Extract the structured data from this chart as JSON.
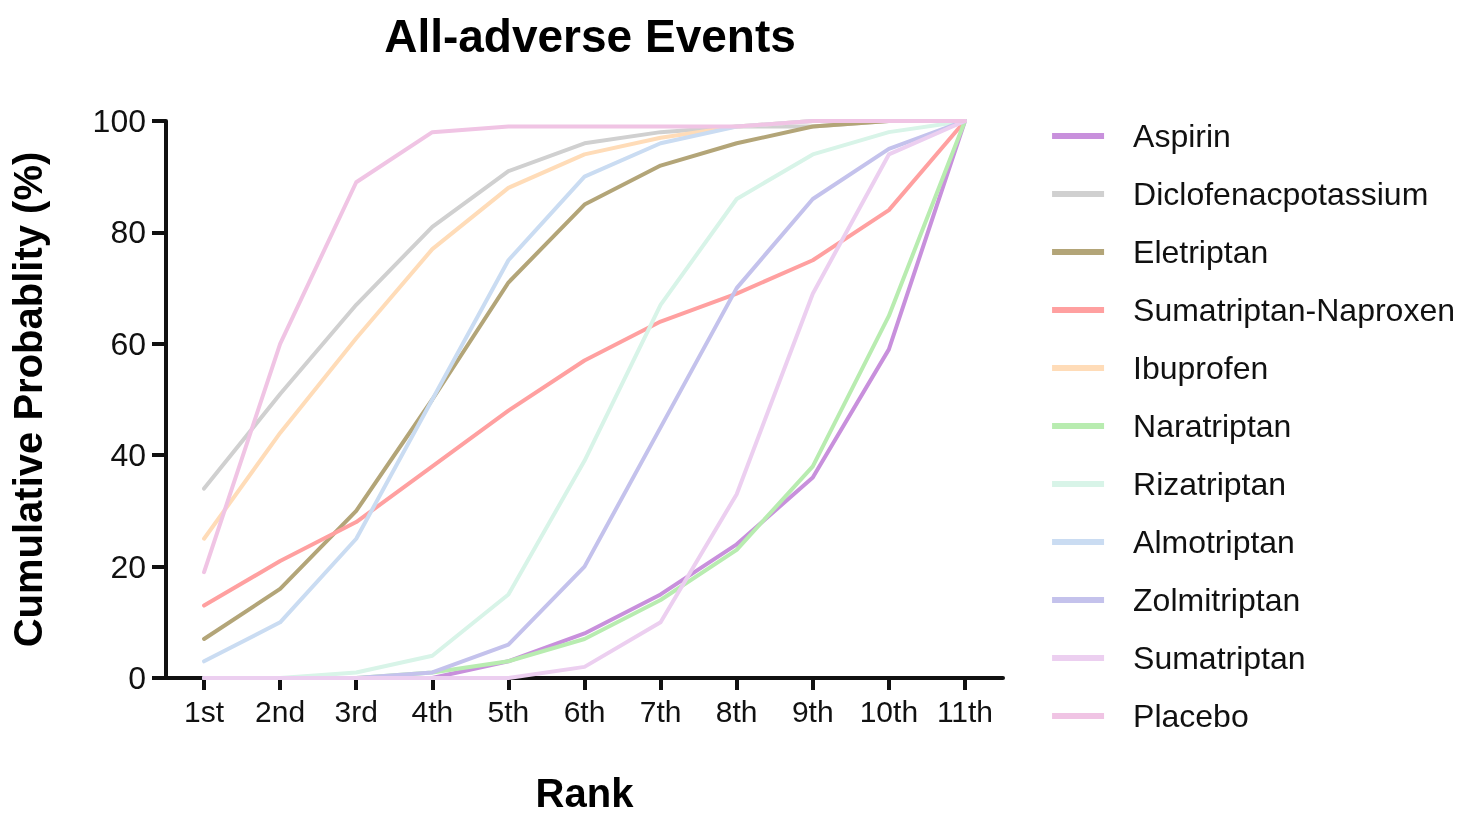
{
  "chart_data": {
    "type": "line",
    "title": "All-adverse Events",
    "xlabel": "Rank",
    "ylabel": "Cumulative Probablity (%)",
    "categories": [
      "1st",
      "2nd",
      "3rd",
      "4th",
      "5th",
      "6th",
      "7th",
      "8th",
      "9th",
      "10th",
      "11th"
    ],
    "series": [
      {
        "name": "Aspirin",
        "color": "#c890dc",
        "values": [
          0,
          0,
          0,
          0,
          3,
          8,
          15,
          24,
          36,
          59,
          100
        ]
      },
      {
        "name": "Diclofenacpotassium",
        "color": "#d0d0d0",
        "values": [
          34,
          51,
          67,
          81,
          91,
          96,
          98,
          99,
          99,
          100,
          100
        ]
      },
      {
        "name": "Eletriptan",
        "color": "#b3a578",
        "values": [
          7,
          16,
          30,
          50,
          71,
          85,
          92,
          96,
          99,
          100,
          100
        ]
      },
      {
        "name": "Sumatriptan-Naproxen",
        "color": "#ffa0a0",
        "values": [
          13,
          21,
          28,
          38,
          48,
          57,
          64,
          69,
          75,
          84,
          100
        ]
      },
      {
        "name": "Ibuprofen",
        "color": "#ffdcb8",
        "values": [
          25,
          44,
          61,
          77,
          88,
          94,
          97,
          99,
          100,
          100,
          100
        ]
      },
      {
        "name": "Naratriptan",
        "color": "#b8ecb0",
        "values": [
          0,
          0,
          0,
          1,
          3,
          7,
          14,
          23,
          38,
          65,
          100
        ]
      },
      {
        "name": "Rizatriptan",
        "color": "#d8f4e8",
        "values": [
          0,
          0,
          1,
          4,
          15,
          39,
          67,
          86,
          94,
          98,
          100
        ]
      },
      {
        "name": "Almotriptan",
        "color": "#cadcf2",
        "values": [
          3,
          10,
          25,
          50,
          75,
          90,
          96,
          99,
          100,
          100,
          100
        ]
      },
      {
        "name": "Zolmitriptan",
        "color": "#c4c2ec",
        "values": [
          0,
          0,
          0,
          1,
          6,
          20,
          45,
          70,
          86,
          95,
          100
        ]
      },
      {
        "name": "Sumatriptan",
        "color": "#eccff0",
        "values": [
          0,
          0,
          0,
          0,
          0,
          2,
          10,
          33,
          69,
          94,
          100
        ]
      },
      {
        "name": "Placebo",
        "color": "#f0c4e4",
        "values": [
          19,
          60,
          89,
          98,
          99,
          99,
          99,
          99,
          100,
          100,
          100
        ]
      }
    ],
    "ylim": [
      0,
      100
    ],
    "yticks": [
      0,
      20,
      40,
      60,
      80,
      100
    ],
    "grid": false,
    "legend": "right",
    "marker": "none",
    "line_style": "solid"
  }
}
